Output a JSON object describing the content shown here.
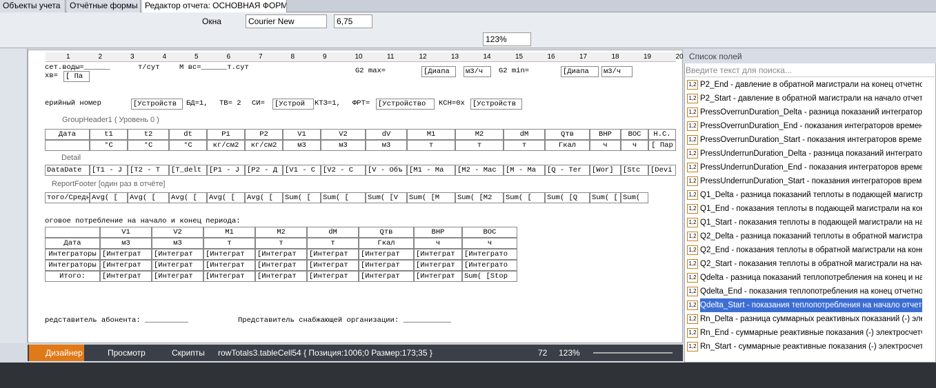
{
  "tabs": [
    "Объекты учета",
    "Отчётные формы",
    "Редактор отчета: ОСНОВНАЯ ФОРМ"
  ],
  "toolbar": {
    "windows": "Окна",
    "font": "Courier New",
    "size": "6,75",
    "zoom": "123%"
  },
  "ruler": [
    "1",
    "2",
    "3",
    "4",
    "5",
    "6",
    "7",
    "8",
    "9",
    "10",
    "11",
    "12",
    "13",
    "14",
    "15",
    "16",
    "17",
    "18",
    "19",
    "20"
  ],
  "report": {
    "top_lines": [
      [
        "сет.воды=______",
        "т/сут",
        "M вс=______т.сут"
      ],
      [
        "хв=",
        "[ Па"
      ]
    ],
    "g2": [
      "G2 max=",
      "[Диапа",
      "м3/ч",
      "G2 min=",
      "[Диапа",
      "м3/ч"
    ],
    "serial": [
      "ерийный номер",
      "[Устройств",
      "БД=1,",
      "ТВ= 2",
      "СИ=",
      "[Устрой",
      "КТЗ=1,",
      "ФРТ=",
      "[Устройство",
      "КСН=0х",
      "[Устройств"
    ],
    "bands": [
      "GroupHeader1 ( Уровень 0 )",
      "Detail",
      "ReportFooter [один раз в отчёте]"
    ],
    "header_names": [
      "Дата",
      "t1",
      "t2",
      "dt",
      "P1",
      "P2",
      "V1",
      "V2",
      "dV",
      "M1",
      "M2",
      "dM",
      "Qтв",
      "ВНР",
      "ВОС",
      "Н.С."
    ],
    "header_units": [
      "",
      "°C",
      "°C",
      "°C",
      "кг/см2",
      "кг/см2",
      "м3",
      "м3",
      "м3",
      "т",
      "т",
      "т",
      "Гкал",
      "ч",
      "ч",
      "[ Пар"
    ],
    "detail": [
      "DataDate",
      "[T1 - J",
      "[T2 - T",
      "[T_delt",
      "[P1 - J",
      "[P2 - Д",
      "[V1 - C",
      "[V2 - C",
      "[V - Объ",
      "[M1 - Ma",
      "[M2 - Mac",
      "[M - Ma",
      "[Q - Ter",
      "[Wor]",
      "[Stc",
      "[Devi"
    ],
    "footer": [
      "того/Средн",
      "Avg( [",
      "Avg( [",
      "Avg( [",
      "Avg( [",
      "Avg( [",
      "Sum( [",
      "Sum( [",
      "Sum( [V",
      "Sum( [M",
      "Sum( [M2",
      "Sum( [",
      "Sum( [Q",
      "Sum( [",
      "Sum("
    ],
    "summary_title": "оговое потребление на начало и конец периода:",
    "summary_rows": [
      [
        "",
        "V1",
        "V2",
        "M1",
        "M2",
        "dM",
        "Qтв",
        "ВНР",
        "ВОС"
      ],
      [
        "Дата",
        "м3",
        "м3",
        "т",
        "т",
        "т",
        "Гкал",
        "ч",
        "ч"
      ],
      [
        "Интеграторы",
        "[Интеграт",
        "[Интеграт",
        "[Интеграт",
        "[Интеграт",
        "[Интеграт",
        "[Интеграт",
        "[Интеграт",
        "[Интеграто"
      ],
      [
        "Интеграторы",
        "[Интеграт",
        "[Интеграт",
        "[Интеграт",
        "[Интеграт",
        "[Интеграт",
        "[Интеграт",
        "[Интеграт",
        "[Интеграто"
      ],
      [
        "Итого:",
        "[Интеграт",
        "[Интеграт",
        "[Интеграт",
        "[Интеграт",
        "[Интеграт",
        "[Интеграт",
        "[Интеграт",
        "Sum( [Stop"
      ]
    ],
    "signatures": [
      "редставитель абонента: __________",
      "Представитель снабжающей организации: ___________"
    ]
  },
  "fields": {
    "title": "Список полей",
    "search": "Введите текст для поиска...",
    "items": [
      "P2_End - давление в обратной магистрали на конец отчетного",
      "P2_Start - давление в обратной магистрали на начало отчетно",
      "PressOverrunDuration_Delta - разница показаний интеграторов",
      "PressOverrunDuration_End - показания интеграторов времени,",
      "PressOverrunDuration_Start - показания интеграторов времени",
      "PressUnderrunDuration_Delta - разница показаний интеграторо",
      "PressUnderrunDuration_End - показания интеграторов времени,",
      "PressUnderrunDuration_Start - показания интеграторов времен",
      "Q1_Delta - разница показаний теплоты в подающей магистрали",
      "Q1_End - показания теплоты в подающей магистрали на конец",
      "Q1_Start - показания теплоты в подающей магистрали на нача",
      "Q2_Delta - разница показаний теплоты в обратной магистрали",
      "Q2_End - показания теплоты в обратной магистрали на конец",
      "Q2_Start - показания теплоты в обратной магистрали на начал",
      "Qdelta - разница показаний теплопотребления на конец и нача",
      "Qdelta_End - показания теплопотребления на конец отчетного",
      "Qdelta_Start - показания теплопотребления на начало отчетно",
      "Rn_Delta - разница суммарных реактивных показаний (-) элект",
      "Rn_End - суммарные реактивные показания (-) электросчетчик",
      "Rn_Start - суммарные реактивные показания (-) электросчетчи"
    ],
    "selected": 16,
    "icon": "1,2"
  },
  "status": {
    "tabs": [
      "Дизайнер",
      "Просмотр",
      "Скрипты"
    ],
    "info": "rowTotals3.tableCell54 { Позиция:1006;0 Размер:173;35 }",
    "count": "72",
    "zoom": "123%"
  }
}
